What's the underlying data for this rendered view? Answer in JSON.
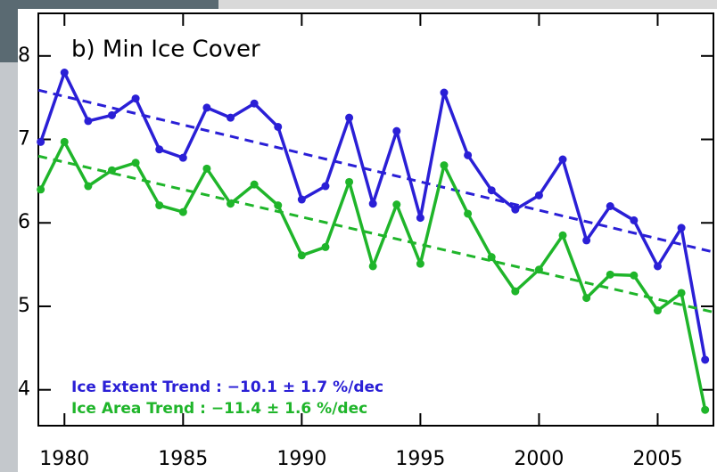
{
  "chart_data": {
    "type": "line",
    "title": "b) Min Ice Cover",
    "x": [
      1979,
      1980,
      1981,
      1982,
      1983,
      1984,
      1985,
      1986,
      1987,
      1988,
      1989,
      1990,
      1991,
      1992,
      1993,
      1994,
      1995,
      1996,
      1997,
      1998,
      1999,
      2000,
      2001,
      2002,
      2003,
      2004,
      2005,
      2006,
      2007
    ],
    "series": [
      {
        "name": "Ice Extent Trend : −10.1 ± 1.7 %/dec",
        "color": "#2a1fd6",
        "values": [
          6.97,
          7.8,
          7.22,
          7.29,
          7.49,
          6.88,
          6.78,
          7.38,
          7.26,
          7.43,
          7.15,
          6.28,
          6.44,
          7.26,
          6.23,
          7.1,
          6.06,
          7.56,
          6.81,
          6.39,
          6.16,
          6.33,
          6.76,
          5.79,
          6.2,
          6.03,
          5.48,
          5.94,
          4.36
        ],
        "trend": [
          7.59,
          5.65
        ]
      },
      {
        "name": "Ice Area Trend : −11.4 ± 1.6 %/dec",
        "color": "#1fb52a",
        "values": [
          6.4,
          6.97,
          6.44,
          6.63,
          6.72,
          6.21,
          6.13,
          6.65,
          6.23,
          6.46,
          6.21,
          5.61,
          5.71,
          6.49,
          5.48,
          6.22,
          5.51,
          6.69,
          6.11,
          5.59,
          5.18,
          5.44,
          5.85,
          5.1,
          5.38,
          5.37,
          4.95,
          5.16,
          3.76
        ],
        "trend": [
          6.8,
          4.93
        ]
      }
    ],
    "xlim": [
      1978.9,
      2007.35
    ],
    "ylim": [
      3.57,
      8.51
    ],
    "xticks": [
      1980,
      1985,
      1990,
      1995,
      2000,
      2005
    ],
    "yticks": [
      4,
      5,
      6,
      7,
      8
    ]
  }
}
